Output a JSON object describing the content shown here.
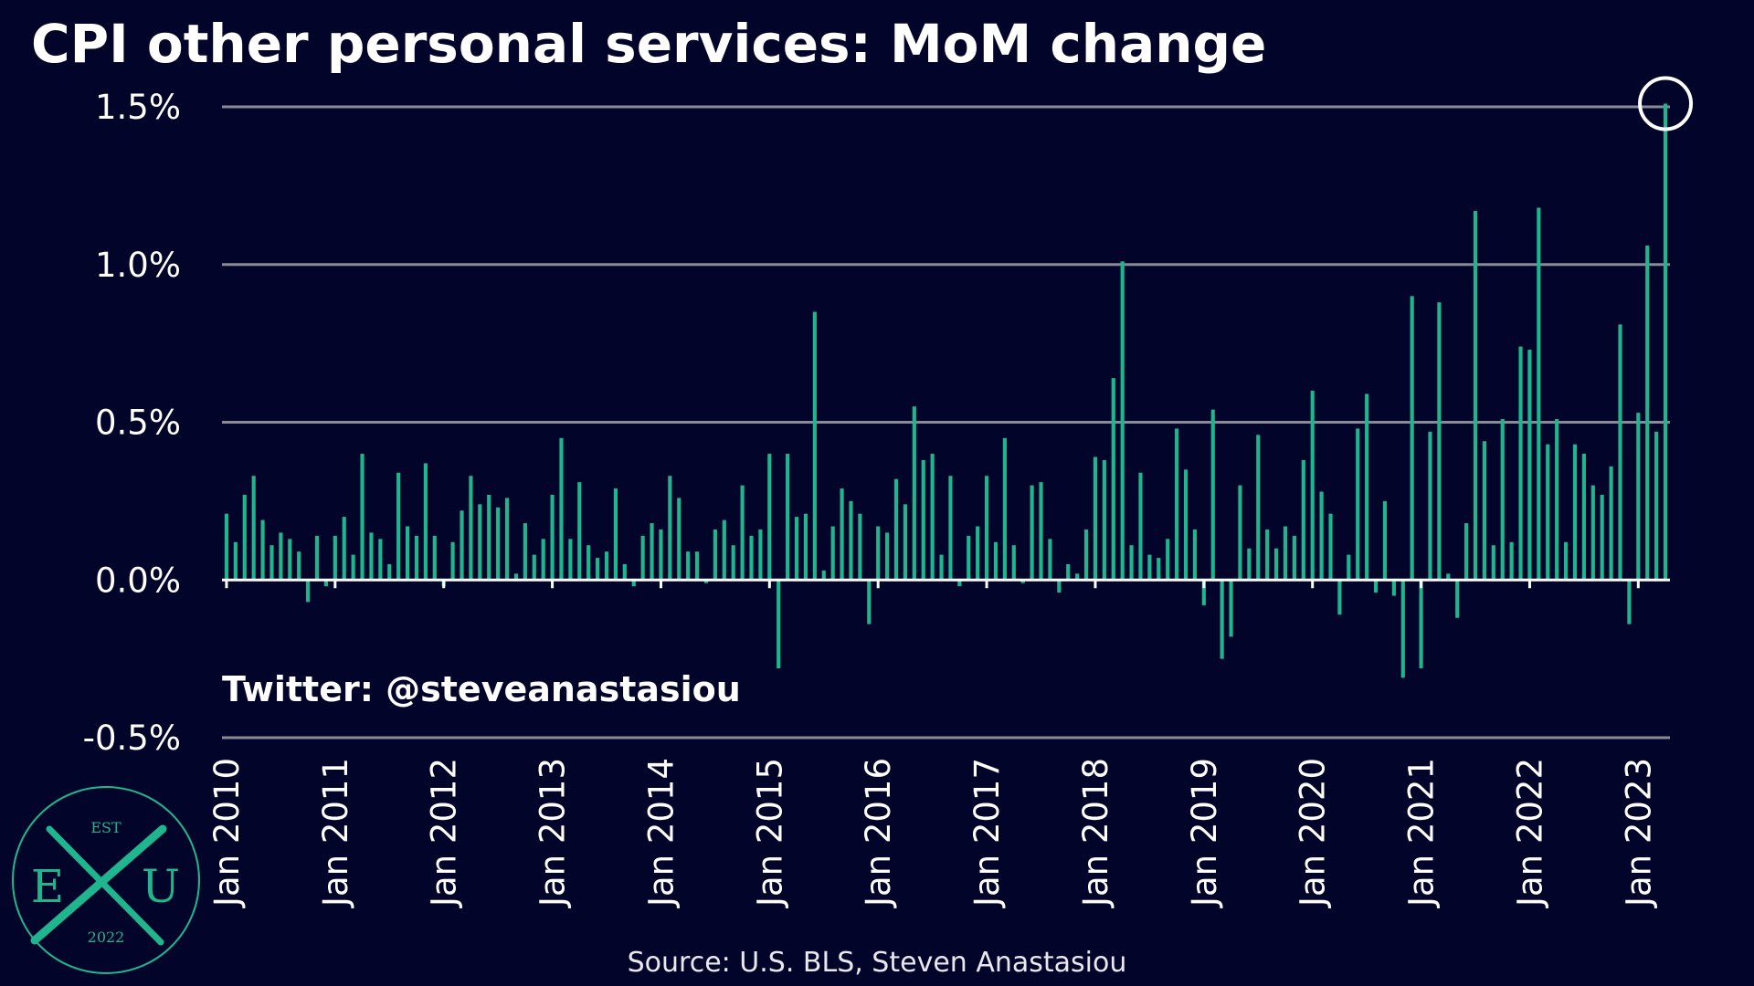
{
  "chart_data": {
    "type": "bar",
    "title": "CPI other personal services: MoM change",
    "handle": "Twitter: @steveanastasiou",
    "source": "Source: U.S. BLS, Steven Anastasiou",
    "ylim": [
      -0.5,
      1.5
    ],
    "yticks": [
      -0.5,
      0.0,
      0.5,
      1.0,
      1.5
    ],
    "ytick_labels": [
      "-0.5%",
      "0.0%",
      "0.5%",
      "1.0%",
      "1.5%"
    ],
    "xtick_labels": [
      "Jan 2010",
      "Jan 2011",
      "Jan 2012",
      "Jan 2013",
      "Jan 2014",
      "Jan 2015",
      "Jan 2016",
      "Jan 2017",
      "Jan 2018",
      "Jan 2019",
      "Jan 2020",
      "Jan 2021",
      "Jan 2022",
      "Jan 2023"
    ],
    "grid": true,
    "highlight": "last value circled",
    "start": "Jan 2010",
    "colors": {
      "bar": "#1fb58e",
      "grid": "#8a8a96",
      "zero_line": "#ffffff",
      "background": "#03042a"
    },
    "values": [
      0.21,
      0.12,
      0.27,
      0.33,
      0.19,
      0.11,
      0.15,
      0.13,
      0.09,
      -0.07,
      0.14,
      -0.02,
      0.14,
      0.2,
      0.08,
      0.4,
      0.15,
      0.13,
      0.05,
      0.34,
      0.17,
      0.14,
      0.37,
      0.14,
      -0.02,
      0.12,
      0.22,
      0.33,
      0.24,
      0.27,
      0.23,
      0.26,
      0.02,
      0.18,
      0.08,
      0.13,
      0.27,
      0.45,
      0.13,
      0.31,
      0.11,
      0.07,
      0.09,
      0.29,
      0.05,
      -0.02,
      0.14,
      0.18,
      0.16,
      0.33,
      0.26,
      0.09,
      0.09,
      -0.01,
      0.16,
      0.19,
      0.11,
      0.3,
      0.14,
      0.16,
      0.4,
      -0.28,
      0.4,
      0.2,
      0.21,
      0.85,
      0.03,
      0.17,
      0.29,
      0.25,
      0.21,
      -0.14,
      0.17,
      0.15,
      0.32,
      0.24,
      0.55,
      0.38,
      0.4,
      0.08,
      0.33,
      -0.02,
      0.14,
      0.17,
      0.33,
      0.12,
      0.45,
      0.11,
      -0.01,
      0.3,
      0.31,
      0.13,
      -0.04,
      0.05,
      0.02,
      0.16,
      0.39,
      0.38,
      0.64,
      1.01,
      0.11,
      0.34,
      0.08,
      0.07,
      0.13,
      0.48,
      0.35,
      0.16,
      -0.08,
      0.54,
      -0.25,
      -0.18,
      0.3,
      0.1,
      0.46,
      0.16,
      0.1,
      0.17,
      0.14,
      0.38,
      0.6,
      0.28,
      0.21,
      -0.11,
      0.08,
      0.48,
      0.59,
      -0.04,
      0.25,
      -0.05,
      -0.31,
      0.9,
      -0.28,
      0.47,
      0.88,
      0.02,
      -0.12,
      0.18,
      1.17,
      0.44,
      0.11,
      0.51,
      0.12,
      0.74,
      0.73,
      1.18,
      0.43,
      0.51,
      0.12,
      0.43,
      0.4,
      0.3,
      0.27,
      0.36,
      0.81,
      -0.14,
      0.53,
      1.06,
      0.47,
      1.51
    ]
  }
}
